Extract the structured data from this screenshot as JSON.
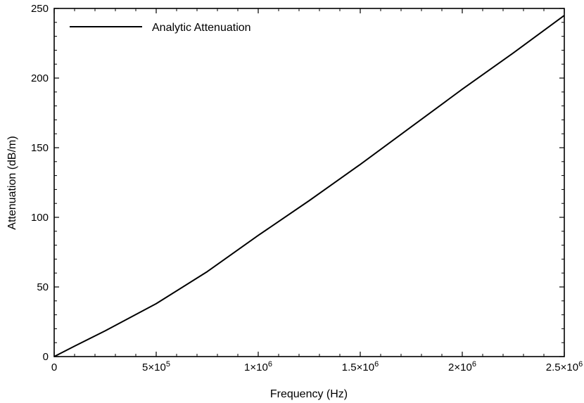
{
  "chart_data": {
    "type": "line",
    "title": "",
    "xlabel": "Frequency (Hz)",
    "ylabel": "Attenuation (dB/m)",
    "xlim": [
      0,
      2500000
    ],
    "ylim": [
      0,
      250
    ],
    "x_ticks": [
      {
        "value": 0,
        "mantissa": "0",
        "exp": ""
      },
      {
        "value": 500000,
        "mantissa": "5×10",
        "exp": "5"
      },
      {
        "value": 1000000,
        "mantissa": "1×10",
        "exp": "6"
      },
      {
        "value": 1500000,
        "mantissa": "1.5×10",
        "exp": "6"
      },
      {
        "value": 2000000,
        "mantissa": "2×10",
        "exp": "6"
      },
      {
        "value": 2500000,
        "mantissa": "2.5×10",
        "exp": "6"
      }
    ],
    "y_ticks": [
      0,
      50,
      100,
      150,
      200,
      250
    ],
    "grid": false,
    "legend": {
      "position": "top-left",
      "entries": [
        "Analytic Attenuation"
      ]
    },
    "series": [
      {
        "name": "Analytic Attenuation",
        "color": "#000000",
        "x": [
          0,
          100000,
          250000,
          500000,
          750000,
          1000000,
          1250000,
          1500000,
          1750000,
          2000000,
          2250000,
          2500000
        ],
        "y": [
          0,
          7.5,
          18.5,
          38,
          61,
          87,
          112,
          138,
          165,
          192,
          218,
          245
        ]
      }
    ]
  }
}
